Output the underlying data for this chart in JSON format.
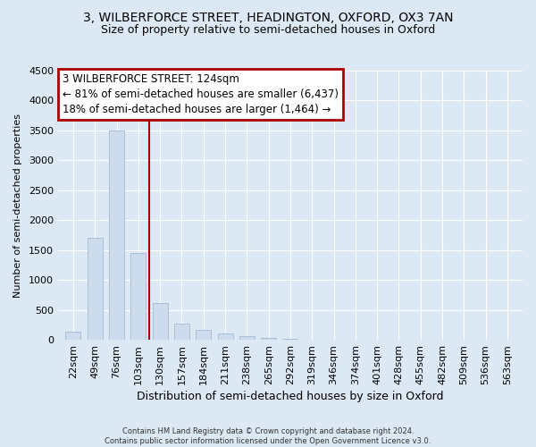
{
  "title_line1": "3, WILBERFORCE STREET, HEADINGTON, OXFORD, OX3 7AN",
  "title_line2": "Size of property relative to semi-detached houses in Oxford",
  "xlabel": "Distribution of semi-detached houses by size in Oxford",
  "ylabel": "Number of semi-detached properties",
  "bar_values": [
    140,
    1700,
    3500,
    1450,
    620,
    270,
    170,
    100,
    55,
    30,
    20,
    5,
    5,
    3,
    0,
    0,
    0,
    0,
    0,
    0,
    0
  ],
  "bar_labels": [
    "22sqm",
    "49sqm",
    "76sqm",
    "103sqm",
    "130sqm",
    "157sqm",
    "184sqm",
    "211sqm",
    "238sqm",
    "265sqm",
    "292sqm",
    "319sqm",
    "346sqm",
    "374sqm",
    "401sqm",
    "428sqm",
    "455sqm",
    "482sqm",
    "509sqm",
    "536sqm",
    "563sqm"
  ],
  "bar_color": "#ccdcec",
  "bar_edge_color": "#a8c0d8",
  "vline_color": "#aa0000",
  "annotation_title": "3 WILBERFORCE STREET: 124sqm",
  "annotation_line1": "← 81% of semi-detached houses are smaller (6,437)",
  "annotation_line2": "18% of semi-detached houses are larger (1,464) →",
  "annotation_box_edge_color": "#aa0000",
  "ylim": [
    0,
    4500
  ],
  "yticks": [
    0,
    500,
    1000,
    1500,
    2000,
    2500,
    3000,
    3500,
    4000,
    4500
  ],
  "footer_line1": "Contains HM Land Registry data © Crown copyright and database right 2024.",
  "footer_line2": "Contains public sector information licensed under the Open Government Licence v3.0.",
  "bg_color": "#dce8f4",
  "plot_bg_color": "#dce8f4",
  "grid_color": "#ffffff"
}
